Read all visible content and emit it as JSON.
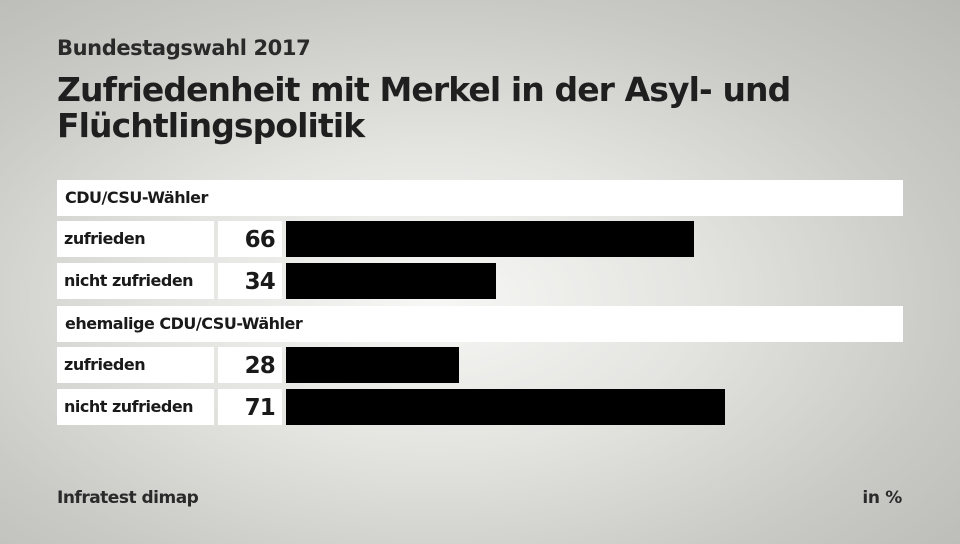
{
  "header": {
    "subtitle": "Bundestagswahl 2017",
    "title": "Zufriedenheit mit Merkel in der Asyl- und Flüchtlingspolitik"
  },
  "chart_data": {
    "type": "bar",
    "orientation": "horizontal",
    "title": "Zufriedenheit mit Merkel in der Asyl- und Flüchtlingspolitik",
    "subtitle": "Bundestagswahl 2017",
    "unit": "in %",
    "xlim": [
      0,
      100
    ],
    "bar_color": "#000000",
    "groups": [
      {
        "name": "CDU/CSU-Wähler",
        "rows": [
          {
            "label": "zufrieden",
            "value": 66
          },
          {
            "label": "nicht zufrieden",
            "value": 34
          }
        ]
      },
      {
        "name": "ehemalige CDU/CSU-Wähler",
        "rows": [
          {
            "label": "zufrieden",
            "value": 28
          },
          {
            "label": "nicht zufrieden",
            "value": 71
          }
        ]
      }
    ]
  },
  "footer": {
    "source": "Infratest dimap",
    "unit": "in %"
  }
}
